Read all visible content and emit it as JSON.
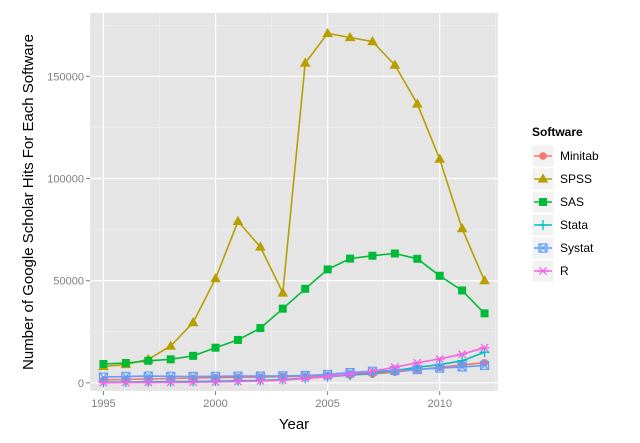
{
  "chart_data": {
    "type": "line",
    "title": "",
    "xlabel": "Year",
    "ylabel": "Number of Google Scholar Hits For Each Software",
    "xlim": [
      1994.4,
      2012.6
    ],
    "ylim": [
      -4000,
      181000
    ],
    "x_ticks": [
      1995,
      2000,
      2005,
      2010
    ],
    "y_ticks": [
      0,
      50000,
      100000,
      150000
    ],
    "y_tick_labels": [
      "0",
      "50000",
      "100000",
      "150000"
    ],
    "grid": true,
    "legend": {
      "title": "Software",
      "position": "right"
    },
    "x": [
      1995,
      1996,
      1997,
      1998,
      1999,
      2000,
      2001,
      2002,
      2003,
      2004,
      2005,
      2006,
      2007,
      2008,
      2009,
      2010,
      2011,
      2012
    ],
    "series": [
      {
        "name": "Minitab",
        "color": "#F8766D",
        "marker": "circle",
        "values": [
          1500,
          1700,
          1900,
          2100,
          2300,
          2500,
          2700,
          2800,
          3000,
          3200,
          3500,
          3800,
          4300,
          5200,
          6500,
          7600,
          8800,
          9800
        ]
      },
      {
        "name": "SPSS",
        "color": "#B79F00",
        "marker": "triangle",
        "values": [
          8000,
          9000,
          11500,
          18000,
          29500,
          51000,
          79000,
          66500,
          44000,
          156500,
          171000,
          169000,
          167000,
          155500,
          136500,
          109500,
          75500,
          50000
        ]
      },
      {
        "name": "SAS",
        "color": "#00BA38",
        "marker": "square",
        "values": [
          9200,
          9700,
          10800,
          11500,
          13200,
          17200,
          21000,
          26800,
          36300,
          46000,
          55500,
          60800,
          62200,
          63300,
          60700,
          52400,
          45200,
          34000
        ]
      },
      {
        "name": "Stata",
        "color": "#00BFC4",
        "marker": "plus",
        "values": [
          300,
          400,
          500,
          600,
          700,
          800,
          1000,
          1200,
          1600,
          2200,
          3000,
          3800,
          4800,
          6000,
          7600,
          8900,
          10800,
          15000
        ]
      },
      {
        "name": "Systat",
        "color": "#619CFF",
        "marker": "boxx",
        "values": [
          2800,
          3100,
          3300,
          3200,
          3100,
          3200,
          3300,
          3300,
          3400,
          3600,
          4100,
          5000,
          5700,
          6100,
          6500,
          7200,
          7800,
          8500
        ]
      },
      {
        "name": "R",
        "color": "#F564E3",
        "marker": "star",
        "values": [
          100,
          150,
          200,
          250,
          300,
          400,
          600,
          900,
          1300,
          2100,
          3000,
          4200,
          5600,
          7700,
          9800,
          11700,
          14000,
          17200
        ]
      }
    ]
  }
}
